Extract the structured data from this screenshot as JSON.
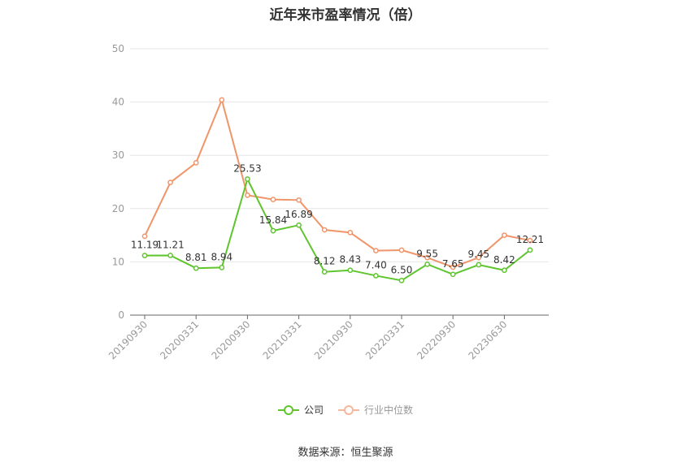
{
  "chart_data": {
    "type": "line",
    "title": "近年来市盈率情况（倍）",
    "xlabel": "",
    "ylabel": "",
    "ylim": [
      0,
      50
    ],
    "yticks": [
      0,
      10,
      20,
      30,
      40,
      50
    ],
    "grid": true,
    "legend_position": "bottom",
    "x": [
      "20190930",
      "20191231",
      "20200331",
      "20200630",
      "20200930",
      "20201231",
      "20210331",
      "20210630",
      "20210930",
      "20211231",
      "20220331",
      "20220630",
      "20220930",
      "20221231",
      "20230630",
      "20230930"
    ],
    "x_tick_labels": [
      "20190930",
      "20200331",
      "20200930",
      "20210331",
      "20210930",
      "20220331",
      "20220930",
      "20230630"
    ],
    "series": [
      {
        "name": "公司",
        "color": "#5fc52e",
        "values": [
          11.19,
          11.21,
          8.81,
          8.94,
          25.53,
          15.84,
          16.89,
          8.12,
          8.43,
          7.4,
          6.5,
          9.55,
          7.65,
          9.45,
          8.42,
          12.21
        ],
        "labels": [
          "11.19",
          "11.21",
          "8.81",
          "8.94",
          "25.53",
          "15.84",
          "16.89",
          "8.12",
          "8.43",
          "7.40",
          "6.50",
          "9.55",
          "7.65",
          "9.45",
          "8.42",
          "12.21"
        ]
      },
      {
        "name": "行业中位数",
        "color": "#f0956a",
        "values": [
          14.8,
          24.9,
          28.6,
          40.4,
          22.5,
          21.7,
          21.6,
          16.0,
          15.5,
          12.1,
          12.2,
          10.8,
          9.0,
          10.8,
          15.0,
          14.0
        ]
      }
    ]
  },
  "source": "数据来源：恒生聚源"
}
